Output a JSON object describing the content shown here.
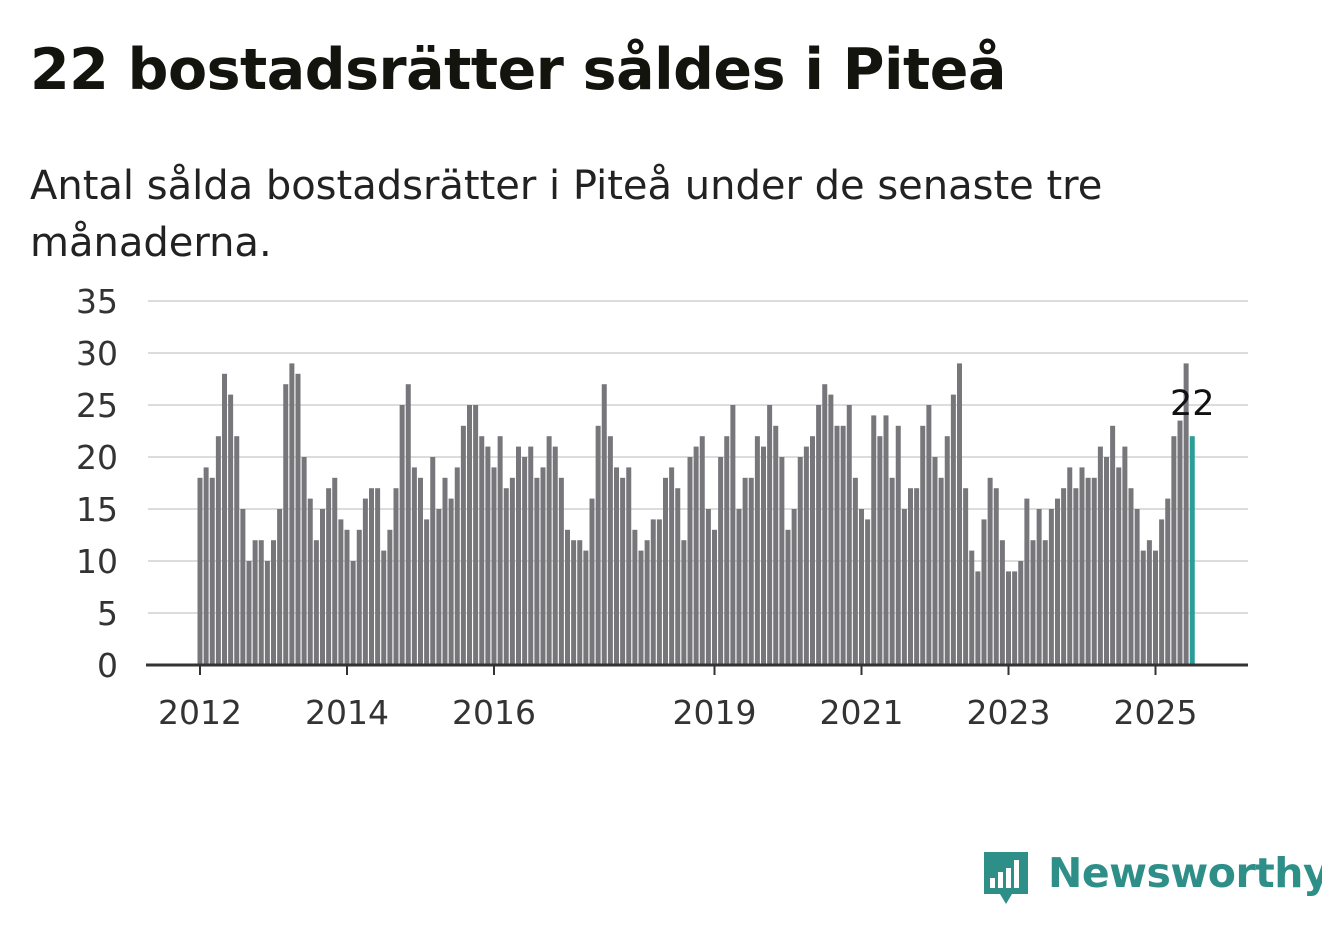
{
  "title": "22 bostadsrätter såldes i Piteå",
  "subtitle": "Antal sålda bostadsrätter i Piteå under de senaste tre månaderna.",
  "brand": {
    "name": "Newsworthy",
    "color": "#2e8f88"
  },
  "colors": {
    "bar": "#77767b",
    "highlight": "#2a9d96",
    "grid": "#dcdcdc",
    "axis": "#333333"
  },
  "chart_data": {
    "type": "bar",
    "title": "22 bostadsrätter såldes i Piteå",
    "subtitle": "Antal sålda bostadsrätter i Piteå under de senaste tre månaderna.",
    "xlabel": "",
    "ylabel": "",
    "ylim": [
      0,
      35
    ],
    "y_ticks": [
      "0",
      "5",
      "10",
      "15",
      "20",
      "25",
      "30",
      "35"
    ],
    "x_ticks": [
      "2012",
      "2014",
      "2016",
      "2019",
      "2021",
      "2023",
      "2025"
    ],
    "x_start": "2012-01",
    "x_end": "2025-06",
    "grid": true,
    "highlight_label": "22",
    "values": [
      18,
      19,
      18,
      22,
      28,
      26,
      22,
      15,
      10,
      12,
      12,
      10,
      12,
      15,
      27,
      29,
      28,
      20,
      16,
      12,
      15,
      17,
      18,
      14,
      13,
      10,
      13,
      16,
      17,
      17,
      11,
      13,
      17,
      25,
      27,
      19,
      18,
      14,
      20,
      15,
      18,
      16,
      19,
      23,
      25,
      25,
      22,
      21,
      19,
      22,
      17,
      18,
      21,
      20,
      21,
      18,
      19,
      22,
      21,
      18,
      13,
      12,
      12,
      11,
      16,
      23,
      27,
      22,
      19,
      18,
      19,
      13,
      11,
      12,
      14,
      14,
      18,
      19,
      17,
      12,
      20,
      21,
      22,
      15,
      13,
      20,
      22,
      25,
      15,
      18,
      18,
      22,
      21,
      25,
      23,
      20,
      13,
      15,
      20,
      21,
      22,
      25,
      27,
      26,
      23,
      23,
      25,
      18,
      15,
      14,
      24,
      22,
      24,
      18,
      23,
      15,
      17,
      17,
      23,
      25,
      20,
      18,
      22,
      26,
      29,
      17,
      11,
      9,
      14,
      18,
      17,
      12,
      9,
      9,
      10,
      16,
      12,
      15,
      12,
      15,
      16,
      17,
      19,
      17,
      19,
      18,
      18,
      21,
      20,
      23,
      19,
      21,
      17,
      15,
      11,
      12,
      11,
      14,
      16,
      22,
      23.5,
      29,
      22
    ]
  }
}
